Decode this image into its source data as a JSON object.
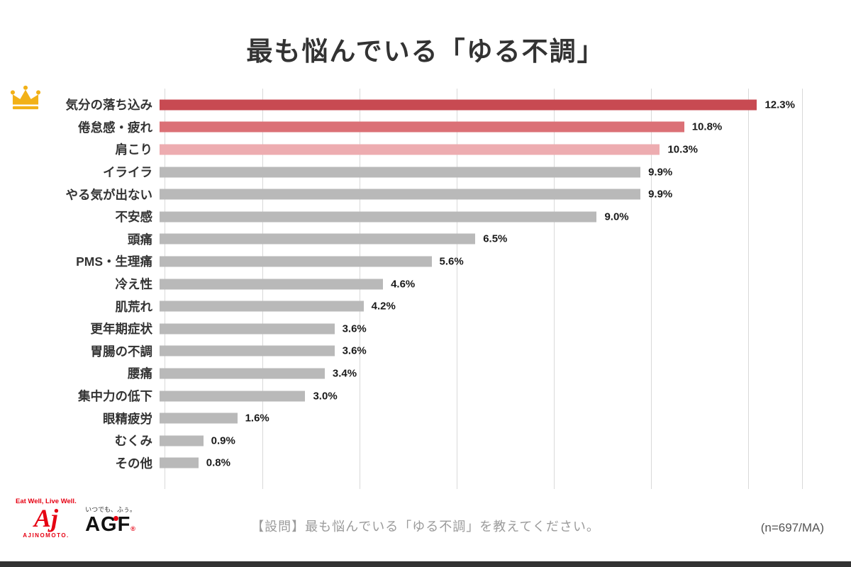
{
  "title": "最も悩んでいる「ゆる不調」",
  "chart_data": {
    "type": "bar",
    "orientation": "horizontal",
    "title": "最も悩んでいる「ゆる不調」",
    "categories": [
      "気分の落ち込み",
      "倦怠感・疲れ",
      "肩こり",
      "イライラ",
      "やる気が出ない",
      "不安感",
      "頭痛",
      "PMS・生理痛",
      "冷え性",
      "肌荒れ",
      "更年期症状",
      "胃腸の不調",
      "腰痛",
      "集中力の低下",
      "眼精疲労",
      "むくみ",
      "その他"
    ],
    "values": [
      12.3,
      10.8,
      10.3,
      9.9,
      9.9,
      9.0,
      6.5,
      5.6,
      4.6,
      4.2,
      3.6,
      3.6,
      3.4,
      3.0,
      1.6,
      0.9,
      0.8
    ],
    "value_labels": [
      "12.3%",
      "10.8%",
      "10.3%",
      "9.9%",
      "9.9%",
      "9.0%",
      "6.5%",
      "5.6%",
      "4.6%",
      "4.2%",
      "3.6%",
      "3.6%",
      "3.4%",
      "3.0%",
      "1.6%",
      "0.9%",
      "0.8%"
    ],
    "bar_colors": [
      "#c84a52",
      "#db7076",
      "#edacb0"
    ],
    "default_bar_color": "#b9b9b9",
    "xlim": [
      0,
      13.14
    ],
    "gridlines": [
      0,
      2,
      4,
      6,
      8,
      10,
      12
    ],
    "grid": true,
    "legend": false
  },
  "footer": {
    "question": "【設問】最も悩んでいる「ゆる不調」を教えてください。",
    "sample_size": "(n=697/MA)"
  },
  "branding": {
    "ajinomoto_tagline": "Eat Well, Live Well.",
    "ajinomoto_mark": "Aj",
    "ajinomoto_name": "AJINOMOTO.",
    "agf_tagline": "いつでも、ふぅ。",
    "agf_name": "AGF",
    "agf_reg": "®"
  },
  "colors": {
    "rank1": "#c84a52",
    "rank2": "#db7076",
    "rank3": "#edacb0",
    "default_bar": "#b9b9b9",
    "grid": "#d9d9d9",
    "brand_red": "#e60012",
    "crown_gold": "#f2b117"
  }
}
